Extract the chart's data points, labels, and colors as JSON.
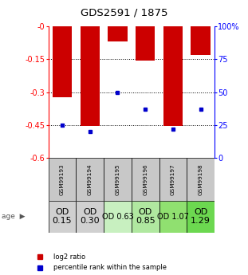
{
  "title": "GDS2591 / 1875",
  "samples": [
    "GSM99193",
    "GSM99194",
    "GSM99195",
    "GSM99196",
    "GSM99197",
    "GSM99198"
  ],
  "log2_ratios": [
    -0.325,
    -0.455,
    -0.07,
    -0.155,
    -0.455,
    -0.13
  ],
  "percentile_ranks": [
    25,
    20,
    50,
    37,
    22,
    37
  ],
  "bar_color": "#cc0000",
  "dot_color": "#0000cc",
  "ylim_left": [
    -0.6,
    0.0
  ],
  "ylim_right": [
    0,
    100
  ],
  "yticks_left": [
    0.0,
    -0.15,
    -0.3,
    -0.45,
    -0.6
  ],
  "yticks_right": [
    0,
    25,
    50,
    75,
    100
  ],
  "ytick_labels_left": [
    "-0",
    "-0.15",
    "-0.3",
    "-0.45",
    "-0.6"
  ],
  "ytick_labels_right": [
    "0",
    "25",
    "50",
    "75",
    "100%"
  ],
  "age_labels": [
    "OD\n0.15",
    "OD\n0.30",
    "OD 0.63",
    "OD\n0.85",
    "OD 1.07",
    "OD\n1.29"
  ],
  "age_bg_colors": [
    "#d0d0d0",
    "#d0d0d0",
    "#c8f0c0",
    "#b0e8a0",
    "#90e070",
    "#6cd850"
  ],
  "age_fontsize": [
    8,
    8,
    7,
    8,
    7,
    8
  ],
  "sample_bg_color": "#c8c8c8",
  "bar_width": 0.7,
  "grid_yticks": [
    -0.15,
    -0.3,
    -0.45
  ]
}
